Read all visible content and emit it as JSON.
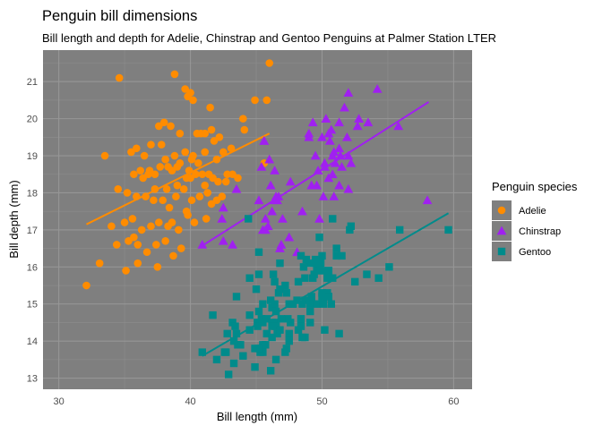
{
  "chart_data": {
    "type": "scatter",
    "title": "Penguin bill dimensions",
    "subtitle": "Bill length and depth for Adelie, Chinstrap and Gentoo Penguins at Palmer Station LTER",
    "xlabel": "Bill length (mm)",
    "ylabel": "Bill depth (mm)",
    "xlim": [
      28.8,
      61.4
    ],
    "ylim": [
      12.7,
      21.85
    ],
    "xticks": [
      30,
      40,
      50,
      60
    ],
    "yticks": [
      13,
      14,
      15,
      16,
      17,
      18,
      19,
      20,
      21
    ],
    "grid": true,
    "panel_background": "#7f7f7f",
    "legend": {
      "title": "Penguin species",
      "position": "right"
    },
    "series": [
      {
        "name": "Adelie",
        "color": "#FF8C00",
        "marker": "circle",
        "trend": {
          "x": [
            32.1,
            46.0
          ],
          "y": [
            17.15,
            19.6
          ]
        },
        "points": [
          [
            34.6,
            21.1
          ],
          [
            38.8,
            21.2
          ],
          [
            39.6,
            20.8
          ],
          [
            39.8,
            20.6
          ],
          [
            40.0,
            20.7
          ],
          [
            40.2,
            20.5
          ],
          [
            41.5,
            20.3
          ],
          [
            44.0,
            20.0
          ],
          [
            44.9,
            20.5
          ],
          [
            45.8,
            20.5
          ],
          [
            38.0,
            19.9
          ],
          [
            39.2,
            19.6
          ],
          [
            40.5,
            19.6
          ],
          [
            41.6,
            19.7
          ],
          [
            42.2,
            19.5
          ],
          [
            37.6,
            19.8
          ],
          [
            41.1,
            19.6
          ],
          [
            38.5,
            19.8
          ],
          [
            40.8,
            19.6
          ],
          [
            44.1,
            19.7
          ],
          [
            33.5,
            19.0
          ],
          [
            35.5,
            19.1
          ],
          [
            36.5,
            19.0
          ],
          [
            37.0,
            19.3
          ],
          [
            37.8,
            19.3
          ],
          [
            38.1,
            18.9
          ],
          [
            38.8,
            19.0
          ],
          [
            39.2,
            18.8
          ],
          [
            39.6,
            19.1
          ],
          [
            40.2,
            19.0
          ],
          [
            40.6,
            18.8
          ],
          [
            41.1,
            19.1
          ],
          [
            41.4,
            18.5
          ],
          [
            41.8,
            19.4
          ],
          [
            42.5,
            19.1
          ],
          [
            43.1,
            19.2
          ],
          [
            42.8,
            18.5
          ],
          [
            35.7,
            18.5
          ],
          [
            36.2,
            18.6
          ],
          [
            36.4,
            18.4
          ],
          [
            36.9,
            18.6
          ],
          [
            37.3,
            18.5
          ],
          [
            37.7,
            18.7
          ],
          [
            38.2,
            18.1
          ],
          [
            38.6,
            18.6
          ],
          [
            39.0,
            18.7
          ],
          [
            39.5,
            18.1
          ],
          [
            39.9,
            18.6
          ],
          [
            40.4,
            18.5
          ],
          [
            40.9,
            18.5
          ],
          [
            41.3,
            18.0
          ],
          [
            41.7,
            18.4
          ],
          [
            42.1,
            18.3
          ],
          [
            42.7,
            18.3
          ],
          [
            43.2,
            18.5
          ],
          [
            43.6,
            18.4
          ],
          [
            34.5,
            18.1
          ],
          [
            35.2,
            18.0
          ],
          [
            35.9,
            17.9
          ],
          [
            36.6,
            17.9
          ],
          [
            37.2,
            17.8
          ],
          [
            37.9,
            17.8
          ],
          [
            38.4,
            17.6
          ],
          [
            38.9,
            17.9
          ],
          [
            39.7,
            17.5
          ],
          [
            40.1,
            17.8
          ],
          [
            40.7,
            17.9
          ],
          [
            41.2,
            17.3
          ],
          [
            41.6,
            17.7
          ],
          [
            42.0,
            17.8
          ],
          [
            42.4,
            17.9
          ],
          [
            34.0,
            17.1
          ],
          [
            35.0,
            17.2
          ],
          [
            35.6,
            17.3
          ],
          [
            36.3,
            17.0
          ],
          [
            37.0,
            17.1
          ],
          [
            37.6,
            17.2
          ],
          [
            38.3,
            17.1
          ],
          [
            39.1,
            17.0
          ],
          [
            39.8,
            17.4
          ],
          [
            40.3,
            17.2
          ],
          [
            34.4,
            16.6
          ],
          [
            35.3,
            16.7
          ],
          [
            36.0,
            16.6
          ],
          [
            36.7,
            16.4
          ],
          [
            37.4,
            16.6
          ],
          [
            38.1,
            16.7
          ],
          [
            38.7,
            16.3
          ],
          [
            39.3,
            16.5
          ],
          [
            35.1,
            15.9
          ],
          [
            36.0,
            16.1
          ],
          [
            37.5,
            16.0
          ],
          [
            35.7,
            16.8
          ],
          [
            32.1,
            15.5
          ],
          [
            33.1,
            16.1
          ],
          [
            45.6,
            18.8
          ],
          [
            46.0,
            21.5
          ],
          [
            39.0,
            18.2
          ],
          [
            40.0,
            18.4
          ],
          [
            37.3,
            18.1
          ],
          [
            35.9,
            19.2
          ],
          [
            41.1,
            18.2
          ],
          [
            38.6,
            17.2
          ],
          [
            42.0,
            18.9
          ],
          [
            40.1,
            18.9
          ],
          [
            39.7,
            18.4
          ],
          [
            38.3,
            18.7
          ],
          [
            36.8,
            18.5
          ]
        ]
      },
      {
        "name": "Chinstrap",
        "color": "#A020F0",
        "marker": "triangle",
        "trend": {
          "x": [
            40.8,
            58.1
          ],
          "y": [
            16.55,
            20.45
          ]
        },
        "points": [
          [
            46.5,
            17.9
          ],
          [
            50.0,
            19.5
          ],
          [
            51.3,
            19.2
          ],
          [
            45.4,
            18.7
          ],
          [
            52.7,
            19.8
          ],
          [
            45.2,
            17.8
          ],
          [
            46.1,
            18.2
          ],
          [
            51.3,
            18.2
          ],
          [
            46.0,
            18.9
          ],
          [
            51.3,
            19.9
          ],
          [
            46.6,
            17.8
          ],
          [
            51.7,
            20.3
          ],
          [
            47.0,
            17.3
          ],
          [
            52.0,
            18.1
          ],
          [
            45.9,
            17.1
          ],
          [
            50.5,
            19.6
          ],
          [
            50.3,
            20.0
          ],
          [
            58.0,
            17.8
          ],
          [
            46.4,
            18.6
          ],
          [
            49.2,
            18.2
          ],
          [
            42.4,
            17.3
          ],
          [
            48.5,
            17.5
          ],
          [
            43.2,
            16.6
          ],
          [
            50.6,
            19.4
          ],
          [
            46.7,
            17.9
          ],
          [
            52.0,
            19.0
          ],
          [
            50.5,
            18.4
          ],
          [
            49.5,
            19.0
          ],
          [
            46.4,
            17.8
          ],
          [
            52.8,
            20.0
          ],
          [
            40.9,
            16.6
          ],
          [
            54.2,
            20.8
          ],
          [
            42.5,
            16.7
          ],
          [
            51.0,
            18.8
          ],
          [
            49.7,
            18.6
          ],
          [
            47.5,
            16.8
          ],
          [
            47.6,
            18.3
          ],
          [
            52.0,
            20.7
          ],
          [
            46.9,
            16.6
          ],
          [
            53.5,
            19.9
          ],
          [
            49.0,
            19.5
          ],
          [
            46.2,
            17.5
          ],
          [
            50.9,
            19.1
          ],
          [
            45.5,
            17.0
          ],
          [
            50.9,
            17.9
          ],
          [
            50.8,
            18.5
          ],
          [
            50.1,
            17.9
          ],
          [
            49.0,
            19.6
          ],
          [
            51.5,
            18.7
          ],
          [
            49.8,
            17.3
          ],
          [
            48.1,
            16.4
          ],
          [
            51.4,
            19.0
          ],
          [
            45.7,
            17.3
          ],
          [
            50.7,
            19.7
          ],
          [
            42.5,
            17.6
          ],
          [
            52.2,
            18.8
          ],
          [
            45.6,
            19.4
          ],
          [
            49.3,
            19.9
          ],
          [
            50.2,
            18.8
          ],
          [
            45.6,
            19.4
          ],
          [
            51.9,
            19.5
          ],
          [
            46.8,
            16.5
          ],
          [
            45.7,
            17.0
          ],
          [
            55.8,
            19.8
          ],
          [
            43.5,
            18.1
          ],
          [
            49.6,
            18.2
          ],
          [
            50.8,
            19.0
          ],
          [
            50.2,
            18.7
          ]
        ]
      },
      {
        "name": "Gentoo",
        "color": "#008B8B",
        "marker": "square",
        "trend": {
          "x": [
            40.9,
            59.6
          ],
          "y": [
            13.6,
            17.45
          ]
        },
        "points": [
          [
            46.1,
            13.2
          ],
          [
            50.0,
            16.3
          ],
          [
            48.7,
            14.1
          ],
          [
            50.0,
            15.2
          ],
          [
            47.6,
            14.5
          ],
          [
            46.5,
            13.5
          ],
          [
            45.4,
            14.6
          ],
          [
            46.7,
            15.3
          ],
          [
            43.3,
            13.4
          ],
          [
            46.8,
            15.4
          ],
          [
            40.9,
            13.7
          ],
          [
            49.0,
            16.1
          ],
          [
            45.5,
            13.7
          ],
          [
            48.4,
            14.6
          ],
          [
            45.8,
            14.6
          ],
          [
            49.3,
            15.7
          ],
          [
            42.0,
            13.5
          ],
          [
            49.2,
            15.2
          ],
          [
            46.2,
            14.5
          ],
          [
            48.7,
            15.1
          ],
          [
            50.2,
            14.3
          ],
          [
            45.1,
            14.5
          ],
          [
            46.5,
            14.5
          ],
          [
            46.3,
            15.8
          ],
          [
            42.9,
            13.1
          ],
          [
            46.1,
            15.1
          ],
          [
            44.5,
            14.3
          ],
          [
            47.8,
            15.0
          ],
          [
            48.2,
            14.3
          ],
          [
            50.0,
            15.3
          ],
          [
            47.3,
            15.3
          ],
          [
            42.8,
            14.2
          ],
          [
            45.1,
            14.5
          ],
          [
            59.6,
            17.0
          ],
          [
            49.1,
            14.8
          ],
          [
            48.4,
            16.3
          ],
          [
            42.6,
            13.7
          ],
          [
            44.4,
            17.3
          ],
          [
            44.0,
            13.6
          ],
          [
            48.7,
            15.7
          ],
          [
            42.7,
            13.7
          ],
          [
            49.6,
            16.0
          ],
          [
            45.3,
            13.7
          ],
          [
            49.6,
            15.0
          ],
          [
            50.5,
            15.9
          ],
          [
            43.6,
            13.9
          ],
          [
            45.5,
            13.9
          ],
          [
            50.5,
            15.9
          ],
          [
            44.9,
            13.3
          ],
          [
            45.2,
            15.8
          ],
          [
            46.6,
            14.2
          ],
          [
            48.5,
            14.1
          ],
          [
            45.1,
            14.4
          ],
          [
            50.1,
            15.0
          ],
          [
            46.5,
            14.4
          ],
          [
            45.0,
            15.4
          ],
          [
            43.8,
            13.9
          ],
          [
            45.5,
            15.0
          ],
          [
            43.2,
            14.5
          ],
          [
            50.4,
            15.3
          ],
          [
            45.3,
            13.8
          ],
          [
            46.2,
            14.9
          ],
          [
            45.7,
            13.9
          ],
          [
            54.3,
            15.7
          ],
          [
            45.8,
            14.2
          ],
          [
            49.8,
            16.8
          ],
          [
            46.2,
            14.4
          ],
          [
            49.5,
            16.2
          ],
          [
            43.5,
            14.2
          ],
          [
            50.7,
            15.0
          ],
          [
            47.7,
            15.0
          ],
          [
            46.4,
            15.6
          ],
          [
            48.2,
            15.6
          ],
          [
            46.5,
            14.8
          ],
          [
            46.4,
            15.0
          ],
          [
            48.6,
            16.0
          ],
          [
            47.5,
            14.2
          ],
          [
            51.1,
            16.3
          ],
          [
            45.2,
            13.8
          ],
          [
            45.2,
            16.4
          ],
          [
            49.1,
            14.5
          ],
          [
            52.5,
            15.6
          ],
          [
            47.4,
            14.6
          ],
          [
            50.0,
            15.9
          ],
          [
            44.9,
            13.8
          ],
          [
            50.8,
            17.3
          ],
          [
            43.4,
            14.4
          ],
          [
            51.3,
            14.2
          ],
          [
            47.5,
            14.0
          ],
          [
            52.1,
            17.0
          ],
          [
            47.5,
            15.0
          ],
          [
            52.2,
            17.1
          ],
          [
            45.5,
            14.5
          ],
          [
            49.5,
            16.1
          ],
          [
            44.5,
            14.7
          ],
          [
            50.8,
            15.7
          ],
          [
            49.4,
            15.8
          ],
          [
            46.9,
            14.6
          ],
          [
            48.4,
            14.4
          ],
          [
            51.1,
            16.5
          ],
          [
            48.5,
            15.0
          ],
          [
            55.9,
            17.0
          ],
          [
            47.2,
            15.5
          ],
          [
            49.1,
            15.0
          ],
          [
            47.3,
            13.8
          ],
          [
            46.8,
            16.1
          ],
          [
            41.7,
            14.7
          ],
          [
            53.4,
            15.8
          ],
          [
            43.3,
            14.0
          ],
          [
            48.1,
            15.1
          ],
          [
            50.5,
            15.2
          ],
          [
            49.8,
            15.9
          ],
          [
            43.5,
            15.2
          ],
          [
            51.5,
            16.3
          ],
          [
            46.2,
            14.1
          ],
          [
            55.1,
            16.0
          ],
          [
            44.5,
            15.7
          ],
          [
            48.8,
            16.2
          ],
          [
            47.2,
            13.7
          ],
          [
            46.8,
            14.3
          ],
          [
            50.4,
            15.7
          ],
          [
            45.2,
            14.8
          ],
          [
            49.9,
            16.1
          ]
        ]
      }
    ]
  }
}
